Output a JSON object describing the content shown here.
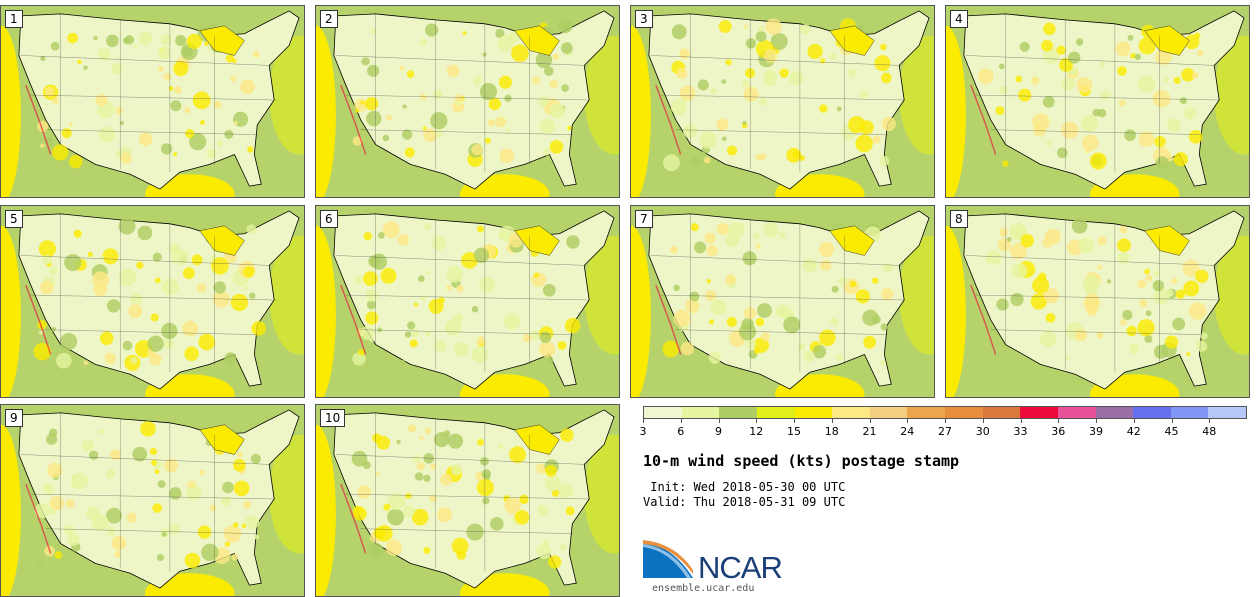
{
  "chart_data": {
    "type": "heatmap",
    "title": "10-m wind speed (kts) postage stamp",
    "init": " Init: Wed 2018-05-30 00 UTC",
    "valid": "Valid: Thu 2018-05-31 09 UTC",
    "members": [
      "1",
      "2",
      "3",
      "4",
      "5",
      "6",
      "7",
      "8",
      "9",
      "10"
    ],
    "colorbar": {
      "ticks": [
        "3",
        "6",
        "9",
        "12",
        "15",
        "18",
        "21",
        "24",
        "27",
        "30",
        "33",
        "36",
        "39",
        "42",
        "45",
        "48"
      ],
      "colors": [
        "#f0f6d2",
        "#e6f5a0",
        "#aecd62",
        "#e2ee1a",
        "#fbeb00",
        "#fde984",
        "#f3cf82",
        "#eba54a",
        "#e78e3c",
        "#d97a3c",
        "#ef0a3c",
        "#e8529a",
        "#9a6ea6",
        "#6470f0",
        "#8096f6",
        "#b6c8fa"
      ]
    }
  },
  "footer": {
    "org": "NCAR",
    "url": "ensemble.ucar.edu"
  }
}
